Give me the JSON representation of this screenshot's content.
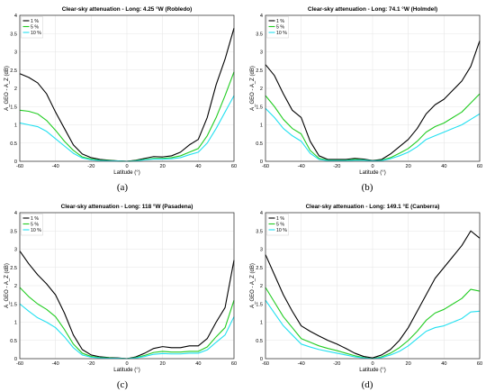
{
  "colors": {
    "p1": "#000000",
    "p5": "#22cc22",
    "p10": "#22e0f0",
    "grid": "#e6e6e6",
    "axis": "#262626"
  },
  "chart_data": [
    {
      "type": "line",
      "title": "Clear-sky attenuation - Long: 4.25 °W (Robledo)",
      "caption": "(a)",
      "xlabel": "Latitude (°)",
      "ylabel": "A_GEO - A_Z (dB)",
      "xlim": [
        -60,
        60
      ],
      "ylim": [
        0,
        4
      ],
      "xticks": [
        -60,
        -40,
        -20,
        0,
        20,
        40,
        60
      ],
      "yticks": [
        0,
        0.5,
        1,
        1.5,
        2,
        2.5,
        3,
        3.5,
        4
      ],
      "grid": true,
      "legend_position": "top-left",
      "series": [
        {
          "name": "1 %",
          "color_key": "p1",
          "x": [
            -60,
            -55,
            -50,
            -45,
            -40,
            -35,
            -30,
            -25,
            -20,
            -15,
            -10,
            -5,
            0,
            5,
            10,
            15,
            20,
            25,
            30,
            35,
            40,
            45,
            50,
            55,
            60
          ],
          "y": [
            2.4,
            2.3,
            2.15,
            1.85,
            1.35,
            0.9,
            0.45,
            0.2,
            0.1,
            0.05,
            0.03,
            0.01,
            0.0,
            0.03,
            0.08,
            0.13,
            0.12,
            0.15,
            0.25,
            0.45,
            0.6,
            1.2,
            2.1,
            2.8,
            3.65
          ]
        },
        {
          "name": "5 %",
          "color_key": "p5",
          "x": [
            -60,
            -55,
            -50,
            -45,
            -40,
            -35,
            -30,
            -25,
            -20,
            -15,
            -10,
            -5,
            0,
            5,
            10,
            15,
            20,
            25,
            30,
            35,
            40,
            45,
            50,
            55,
            60
          ],
          "y": [
            1.4,
            1.37,
            1.3,
            1.12,
            0.85,
            0.55,
            0.3,
            0.12,
            0.06,
            0.03,
            0.02,
            0.01,
            0.0,
            0.02,
            0.05,
            0.08,
            0.08,
            0.1,
            0.15,
            0.25,
            0.35,
            0.7,
            1.2,
            1.8,
            2.45
          ]
        },
        {
          "name": "10 %",
          "color_key": "p10",
          "x": [
            -60,
            -55,
            -50,
            -45,
            -40,
            -35,
            -30,
            -25,
            -20,
            -15,
            -10,
            -5,
            0,
            5,
            10,
            15,
            20,
            25,
            30,
            35,
            40,
            45,
            50,
            55,
            60
          ],
          "y": [
            1.05,
            1.0,
            0.95,
            0.82,
            0.62,
            0.42,
            0.22,
            0.09,
            0.04,
            0.02,
            0.01,
            0.01,
            0.0,
            0.01,
            0.04,
            0.06,
            0.06,
            0.07,
            0.1,
            0.18,
            0.25,
            0.5,
            0.9,
            1.35,
            1.8
          ]
        }
      ]
    },
    {
      "type": "line",
      "title": "Clear-sky attenuation - Long: 74.1 °W (Holmdel)",
      "caption": "(b)",
      "xlabel": "Latitude (°)",
      "ylabel": "A_GEO - A_Z (dB)",
      "xlim": [
        -60,
        60
      ],
      "ylim": [
        0,
        4
      ],
      "xticks": [
        -60,
        -40,
        -20,
        0,
        20,
        40,
        60
      ],
      "yticks": [
        0,
        0.5,
        1,
        1.5,
        2,
        2.5,
        3,
        3.5,
        4
      ],
      "grid": true,
      "legend_position": "top-left",
      "series": [
        {
          "name": "1 %",
          "color_key": "p1",
          "x": [
            -60,
            -55,
            -50,
            -45,
            -40,
            -35,
            -30,
            -25,
            -20,
            -15,
            -10,
            -5,
            0,
            5,
            10,
            15,
            20,
            25,
            30,
            35,
            40,
            45,
            50,
            55,
            60
          ],
          "y": [
            2.65,
            2.35,
            1.85,
            1.4,
            1.2,
            0.55,
            0.15,
            0.05,
            0.05,
            0.05,
            0.08,
            0.06,
            0.02,
            0.05,
            0.2,
            0.4,
            0.6,
            0.9,
            1.3,
            1.55,
            1.7,
            1.95,
            2.2,
            2.6,
            3.3
          ]
        },
        {
          "name": "5 %",
          "color_key": "p5",
          "x": [
            -60,
            -55,
            -50,
            -45,
            -40,
            -35,
            -30,
            -25,
            -20,
            -15,
            -10,
            -5,
            0,
            5,
            10,
            15,
            20,
            25,
            30,
            35,
            40,
            45,
            50,
            55,
            60
          ],
          "y": [
            1.8,
            1.5,
            1.15,
            0.9,
            0.75,
            0.3,
            0.08,
            0.03,
            0.03,
            0.03,
            0.05,
            0.04,
            0.01,
            0.03,
            0.1,
            0.22,
            0.35,
            0.55,
            0.8,
            0.95,
            1.05,
            1.2,
            1.35,
            1.6,
            1.85
          ]
        },
        {
          "name": "10 %",
          "color_key": "p10",
          "x": [
            -60,
            -55,
            -50,
            -45,
            -40,
            -35,
            -30,
            -25,
            -20,
            -15,
            -10,
            -5,
            0,
            5,
            10,
            15,
            20,
            25,
            30,
            35,
            40,
            45,
            50,
            55,
            60
          ],
          "y": [
            1.45,
            1.2,
            0.9,
            0.7,
            0.55,
            0.22,
            0.05,
            0.02,
            0.02,
            0.02,
            0.03,
            0.03,
            0.01,
            0.02,
            0.07,
            0.15,
            0.25,
            0.4,
            0.6,
            0.7,
            0.8,
            0.9,
            1.0,
            1.15,
            1.3
          ]
        }
      ]
    },
    {
      "type": "line",
      "title": "Clear-sky attenuation - Long: 118 °W (Pasadena)",
      "caption": "(c)",
      "xlabel": "Latitude (°)",
      "ylabel": "A_GEO - A_Z (dB)",
      "xlim": [
        -60,
        60
      ],
      "ylim": [
        0,
        4
      ],
      "xticks": [
        -60,
        -40,
        -20,
        0,
        20,
        40,
        60
      ],
      "yticks": [
        0,
        0.5,
        1,
        1.5,
        2,
        2.5,
        3,
        3.5,
        4
      ],
      "grid": true,
      "legend_position": "top-left",
      "series": [
        {
          "name": "1 %",
          "color_key": "p1",
          "x": [
            -60,
            -55,
            -50,
            -45,
            -40,
            -35,
            -30,
            -25,
            -20,
            -15,
            -10,
            -5,
            0,
            5,
            10,
            15,
            20,
            25,
            30,
            35,
            40,
            45,
            50,
            55,
            60
          ],
          "y": [
            2.95,
            2.6,
            2.3,
            2.05,
            1.75,
            1.25,
            0.65,
            0.25,
            0.1,
            0.05,
            0.03,
            0.02,
            0.0,
            0.05,
            0.15,
            0.28,
            0.33,
            0.3,
            0.3,
            0.35,
            0.35,
            0.55,
            1.0,
            1.4,
            2.7
          ]
        },
        {
          "name": "5 %",
          "color_key": "p5",
          "x": [
            -60,
            -55,
            -50,
            -45,
            -40,
            -35,
            -30,
            -25,
            -20,
            -15,
            -10,
            -5,
            0,
            5,
            10,
            15,
            20,
            25,
            30,
            35,
            40,
            45,
            50,
            55,
            60
          ],
          "y": [
            1.95,
            1.7,
            1.5,
            1.35,
            1.15,
            0.8,
            0.4,
            0.15,
            0.06,
            0.03,
            0.02,
            0.01,
            0.0,
            0.03,
            0.09,
            0.17,
            0.2,
            0.18,
            0.18,
            0.2,
            0.2,
            0.32,
            0.6,
            0.85,
            1.6
          ]
        },
        {
          "name": "10 %",
          "color_key": "p10",
          "x": [
            -60,
            -55,
            -50,
            -45,
            -40,
            -35,
            -30,
            -25,
            -20,
            -15,
            -10,
            -5,
            0,
            5,
            10,
            15,
            20,
            25,
            30,
            35,
            40,
            45,
            50,
            55,
            60
          ],
          "y": [
            1.5,
            1.3,
            1.12,
            1.0,
            0.85,
            0.6,
            0.3,
            0.1,
            0.04,
            0.02,
            0.01,
            0.01,
            0.0,
            0.02,
            0.06,
            0.12,
            0.14,
            0.13,
            0.13,
            0.15,
            0.15,
            0.24,
            0.45,
            0.65,
            1.15
          ]
        }
      ]
    },
    {
      "type": "line",
      "title": "Clear-sky attenuation - Long: 149.1 °E (Canberra)",
      "caption": "(d)",
      "xlabel": "Latitude (°)",
      "ylabel": "A_GEO - A_Z (dB)",
      "xlim": [
        -60,
        60
      ],
      "ylim": [
        0,
        4
      ],
      "xticks": [
        -60,
        -40,
        -20,
        0,
        20,
        40,
        60
      ],
      "yticks": [
        0,
        0.5,
        1,
        1.5,
        2,
        2.5,
        3,
        3.5,
        4
      ],
      "grid": true,
      "legend_position": "top-left",
      "series": [
        {
          "name": "1 %",
          "color_key": "p1",
          "x": [
            -60,
            -55,
            -50,
            -45,
            -40,
            -35,
            -30,
            -25,
            -20,
            -15,
            -10,
            -5,
            0,
            5,
            10,
            15,
            20,
            25,
            30,
            35,
            40,
            45,
            50,
            55,
            60
          ],
          "y": [
            2.85,
            2.3,
            1.75,
            1.3,
            0.9,
            0.75,
            0.62,
            0.5,
            0.4,
            0.28,
            0.15,
            0.06,
            0.02,
            0.1,
            0.25,
            0.5,
            0.85,
            1.3,
            1.75,
            2.2,
            2.5,
            2.8,
            3.1,
            3.5,
            3.3
          ]
        },
        {
          "name": "5 %",
          "color_key": "p5",
          "x": [
            -60,
            -55,
            -50,
            -45,
            -40,
            -35,
            -30,
            -25,
            -20,
            -15,
            -10,
            -5,
            0,
            5,
            10,
            15,
            20,
            25,
            30,
            35,
            40,
            45,
            50,
            55,
            60
          ],
          "y": [
            1.95,
            1.55,
            1.15,
            0.85,
            0.55,
            0.45,
            0.35,
            0.28,
            0.22,
            0.15,
            0.08,
            0.03,
            0.0,
            0.05,
            0.15,
            0.3,
            0.5,
            0.75,
            1.05,
            1.25,
            1.35,
            1.5,
            1.65,
            1.9,
            1.85
          ]
        },
        {
          "name": "10 %",
          "color_key": "p10",
          "x": [
            -60,
            -55,
            -50,
            -45,
            -40,
            -35,
            -30,
            -25,
            -20,
            -15,
            -10,
            -5,
            0,
            5,
            10,
            15,
            20,
            25,
            30,
            35,
            40,
            45,
            50,
            55,
            60
          ],
          "y": [
            1.6,
            1.25,
            0.9,
            0.65,
            0.4,
            0.32,
            0.25,
            0.2,
            0.15,
            0.1,
            0.05,
            0.02,
            0.0,
            0.03,
            0.1,
            0.2,
            0.35,
            0.55,
            0.75,
            0.85,
            0.9,
            1.0,
            1.1,
            1.28,
            1.3
          ]
        }
      ]
    }
  ]
}
